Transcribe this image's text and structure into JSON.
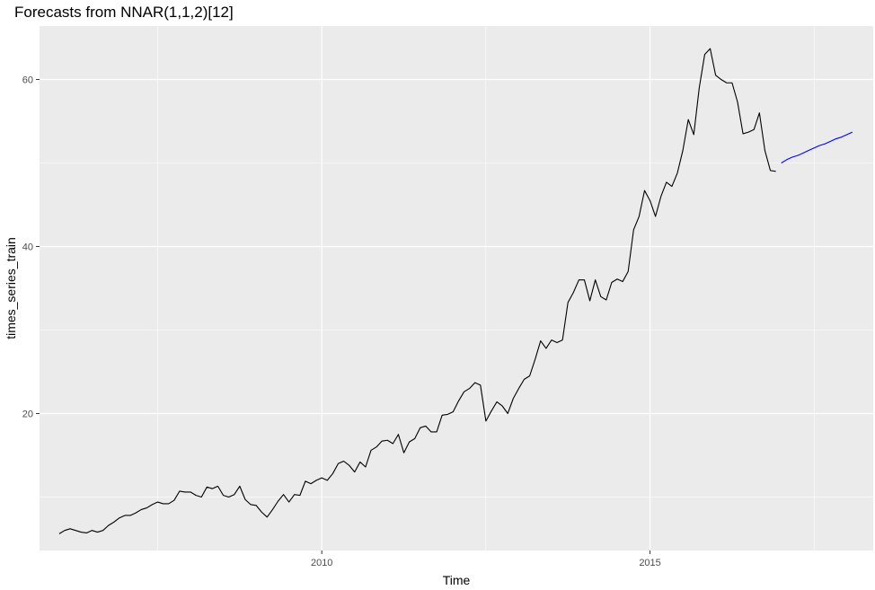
{
  "chart_data": {
    "type": "line",
    "title": "Forecasts from NNAR(1,1,2)[12]",
    "xlabel": "Time",
    "ylabel": "times_series_train",
    "xlim": [
      2005.7,
      2018.4
    ],
    "ylim": [
      3.6,
      66.4
    ],
    "x_ticks": [
      2010,
      2015
    ],
    "x_tick_labels": [
      "2010",
      "2015"
    ],
    "x_minor_ticks": [
      2007.5,
      2012.5,
      2017.5
    ],
    "y_ticks": [
      20,
      40,
      60
    ],
    "y_tick_labels": [
      "20",
      "40",
      "60"
    ],
    "y_minor_ticks": [
      10,
      30,
      50
    ],
    "grid": true,
    "legend": "none",
    "background_color": "#ebebeb",
    "grid_color": "#ffffff",
    "series": [
      {
        "role": "observed",
        "color": "#000000",
        "start": 2006.0,
        "frequency": 12,
        "values": [
          5.6,
          6.0,
          6.2,
          6.0,
          5.8,
          5.7,
          6.0,
          5.8,
          6.0,
          6.6,
          7.0,
          7.5,
          7.8,
          7.8,
          8.1,
          8.5,
          8.7,
          9.1,
          9.4,
          9.2,
          9.2,
          9.6,
          10.7,
          10.6,
          10.6,
          10.2,
          10.0,
          11.2,
          11.0,
          11.3,
          10.2,
          10.0,
          10.3,
          11.3,
          9.7,
          9.1,
          9.0,
          8.2,
          7.6,
          8.5,
          9.5,
          10.3,
          9.4,
          10.3,
          10.2,
          11.9,
          11.6,
          12.0,
          12.3,
          12.0,
          12.8,
          14.0,
          14.3,
          13.8,
          13.0,
          14.2,
          13.6,
          15.6,
          16.0,
          16.7,
          16.8,
          16.4,
          17.5,
          15.3,
          16.6,
          17.0,
          18.3,
          18.5,
          17.8,
          17.8,
          19.8,
          19.9,
          20.2,
          21.5,
          22.6,
          23.0,
          23.7,
          23.4,
          19.1,
          20.3,
          21.4,
          20.9,
          20.0,
          21.8,
          23.0,
          24.1,
          24.5,
          26.5,
          28.7,
          27.8,
          28.8,
          28.5,
          28.8,
          33.3,
          34.5,
          36.0,
          36.0,
          33.5,
          36.0,
          34.0,
          33.6,
          35.7,
          36.1,
          35.8,
          37.0,
          42.0,
          43.6,
          46.7,
          45.5,
          43.6,
          46.0,
          47.7,
          47.2,
          48.8,
          51.5,
          55.2,
          53.4,
          59.0,
          63.0,
          63.7,
          60.5,
          60.0,
          59.6,
          59.6,
          57.3,
          53.5,
          53.7,
          54.0,
          56.0,
          51.5,
          49.1,
          49.0
        ]
      },
      {
        "role": "forecast",
        "color": "#0000ff",
        "start": 2017.0,
        "frequency": 12,
        "values": [
          50.0,
          50.4,
          50.7,
          50.9,
          51.2,
          51.5,
          51.8,
          52.1,
          52.3,
          52.6,
          52.9,
          53.1,
          53.4,
          53.7
        ]
      }
    ]
  }
}
